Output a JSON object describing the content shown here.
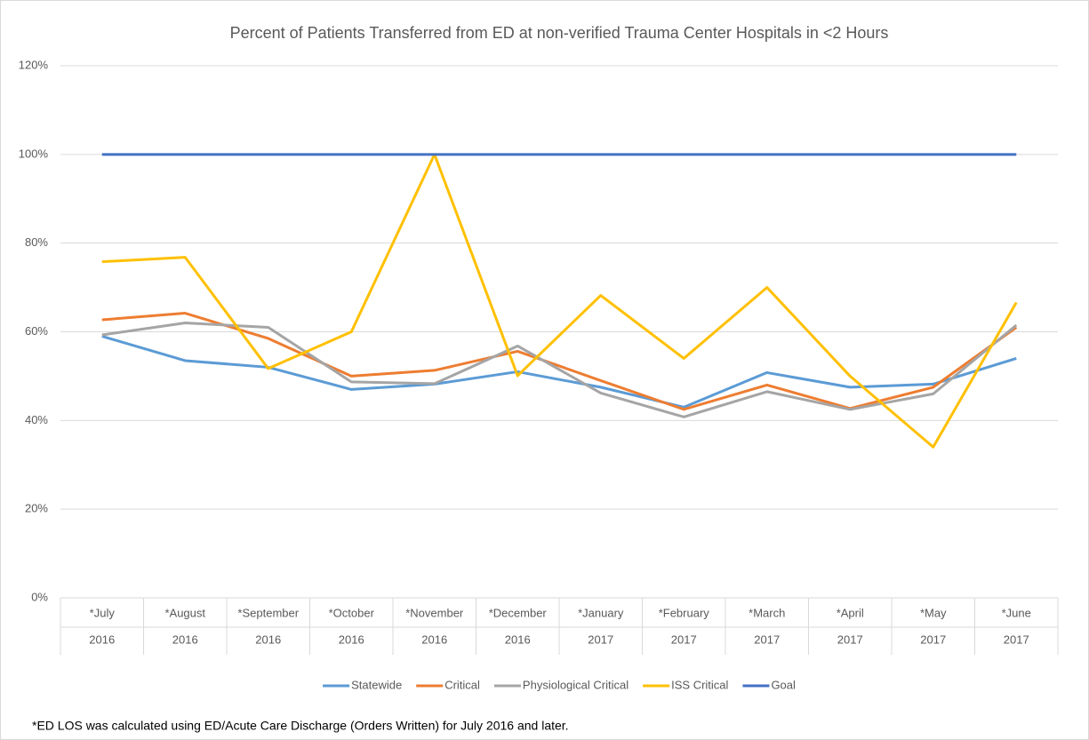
{
  "chart_data": {
    "type": "line",
    "title": "Percent of Patients Transferred from ED at non-verified Trauma Center Hospitals in <2 Hours",
    "categories": [
      [
        "*July",
        "2016"
      ],
      [
        "*August",
        "2016"
      ],
      [
        "*September",
        "2016"
      ],
      [
        "*October",
        "2016"
      ],
      [
        "*November",
        "2016"
      ],
      [
        "*December",
        "2016"
      ],
      [
        "*January",
        "2017"
      ],
      [
        "*February",
        "2017"
      ],
      [
        "*March",
        "2017"
      ],
      [
        "*April",
        "2017"
      ],
      [
        "*May",
        "2017"
      ],
      [
        "*June",
        "2017"
      ]
    ],
    "series": [
      {
        "name": "Statewide",
        "color": "#5b9bd5",
        "values": [
          59,
          53.5,
          52,
          47,
          48.2,
          51,
          47.5,
          43,
          50.8,
          47.5,
          48.2,
          54
        ]
      },
      {
        "name": "Critical",
        "color": "#ed7d31",
        "values": [
          62.7,
          64.2,
          58.5,
          50,
          51.3,
          55.6,
          49,
          42.5,
          48,
          42.7,
          47.5,
          61
        ]
      },
      {
        "name": "Physiological Critical",
        "color": "#a5a5a5",
        "values": [
          59.3,
          62,
          61,
          48.7,
          48.3,
          56.8,
          46.2,
          40.8,
          46.5,
          42.5,
          46,
          61.5
        ]
      },
      {
        "name": "ISS Critical",
        "color": "#ffc000",
        "values": [
          75.8,
          76.8,
          51.7,
          60,
          100,
          50.1,
          68.2,
          54,
          70,
          50,
          34,
          66.6
        ]
      },
      {
        "name": "Goal",
        "color": "#4472c4",
        "values": [
          100,
          100,
          100,
          100,
          100,
          100,
          100,
          100,
          100,
          100,
          100,
          100
        ]
      }
    ],
    "ylim": [
      0,
      120
    ],
    "yticks": [
      {
        "value": 0,
        "label": "0%"
      },
      {
        "value": 20,
        "label": "20%"
      },
      {
        "value": 40,
        "label": "40%"
      },
      {
        "value": 60,
        "label": "60%"
      },
      {
        "value": 80,
        "label": "80%"
      },
      {
        "value": 100,
        "label": "100%"
      },
      {
        "value": 120,
        "label": "120%"
      }
    ],
    "grid": true,
    "legend": "bottom",
    "footnote": "*ED LOS was calculated using ED/Acute Care Discharge (Orders Written) for July 2016 and later."
  }
}
